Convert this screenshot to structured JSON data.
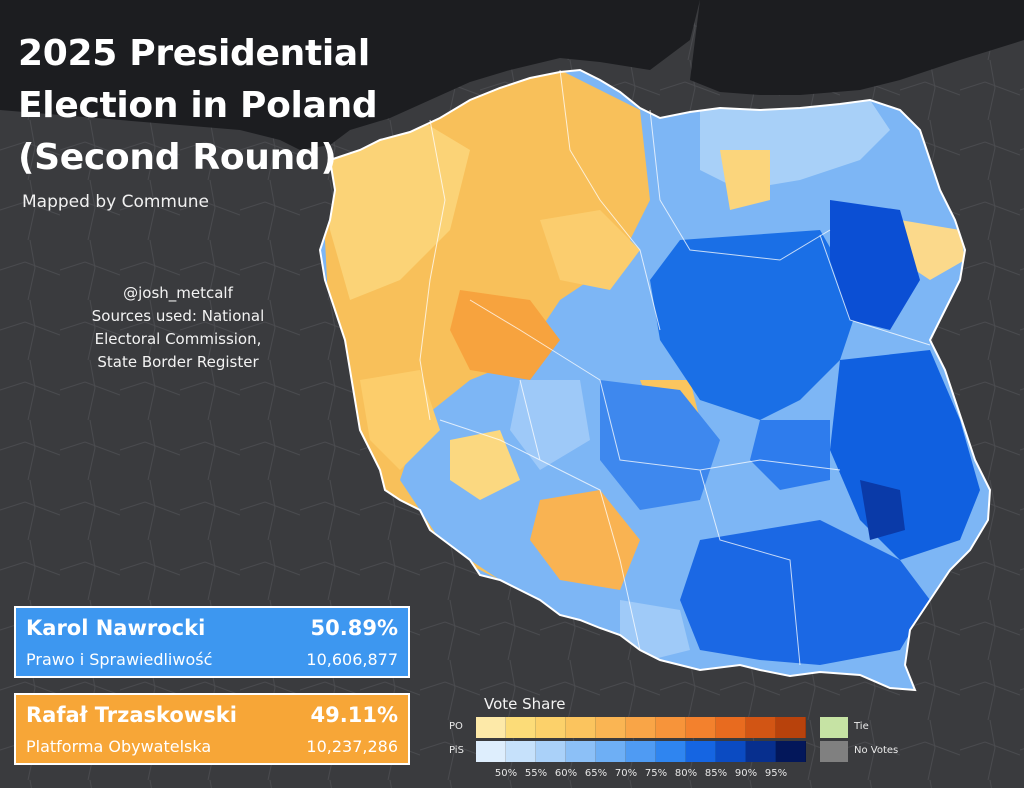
{
  "title": "2025 Presidential Election in Poland (Second Round)",
  "subtitle": "Mapped by Commune",
  "credits": [
    "@josh_metcalf",
    "Sources used: National",
    "Electoral Commission,",
    "State Border Register"
  ],
  "candidates": [
    {
      "name": "Karol Nawrocki",
      "percent": "50.89%",
      "party": "Prawo i Sprawiedliwość",
      "votes": "10,606,877",
      "color": "#3d97f0"
    },
    {
      "name": "Rafał Trzaskowski",
      "percent": "49.11%",
      "party": "Platforma Obywatelska",
      "votes": "10,237,286",
      "color": "#f7a637"
    }
  ],
  "legend": {
    "title": "Vote Share",
    "po_label": "PO",
    "pis_label": "PiS",
    "tie_label": "Tie",
    "novotes_label": "No Votes",
    "ticks": [
      "50%",
      "55%",
      "60%",
      "65%",
      "70%",
      "75%",
      "80%",
      "85%",
      "90%",
      "95%"
    ],
    "po_colors": [
      "#fde9a8",
      "#fcdc78",
      "#fcd16a",
      "#fbc45e",
      "#fab553",
      "#f9a547",
      "#f7943a",
      "#f3812d",
      "#e86b1f",
      "#d25514",
      "#b8420c"
    ],
    "pis_colors": [
      "#deeefd",
      "#c6e1fb",
      "#aad1f9",
      "#8cc0f7",
      "#6eaff5",
      "#4f9bf3",
      "#2f85f0",
      "#1565e2",
      "#0b4bc2",
      "#072f8e",
      "#03175a"
    ],
    "tie_color": "#c6e3a4",
    "novotes_color": "#808080"
  }
}
